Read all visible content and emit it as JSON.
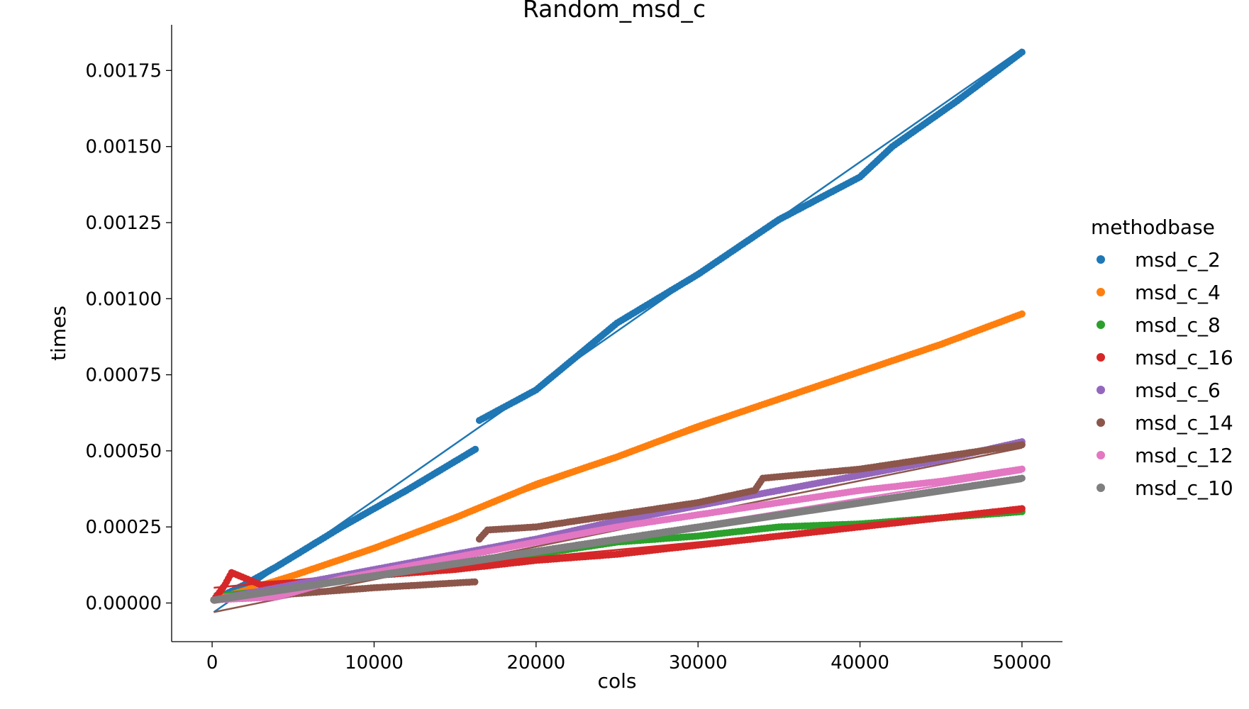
{
  "chart_data": {
    "type": "scatter",
    "title": "Random_msd_c",
    "xlabel": "cols",
    "ylabel": "times",
    "xlim": [
      -2500,
      52500
    ],
    "ylim": [
      -0.000127,
      0.0019
    ],
    "xticks": [
      0,
      10000,
      20000,
      30000,
      40000,
      50000
    ],
    "xtick_labels": [
      "0",
      "10000",
      "20000",
      "30000",
      "40000",
      "50000"
    ],
    "yticks": [
      0.0,
      0.00025,
      0.0005,
      0.00075,
      0.001,
      0.00125,
      0.0015,
      0.00175
    ],
    "ytick_labels": [
      "0.00000",
      "0.00025",
      "0.00050",
      "0.00075",
      "0.00100",
      "0.00125",
      "0.00150",
      "0.00175"
    ],
    "grid": false,
    "legend": {
      "title": "methodbase",
      "placement": "right"
    },
    "series": [
      {
        "name": "msd_c_2",
        "color": "#1f77b4",
        "points": [
          [
            100,
            1e-05
          ],
          [
            2000,
            6e-05
          ],
          [
            4000,
            0.00012
          ],
          [
            8000,
            0.00025
          ],
          [
            12000,
            0.00037
          ],
          [
            16400,
            0.00051
          ],
          [
            16500,
            0.0006
          ],
          [
            20000,
            0.0007
          ],
          [
            25000,
            0.00092
          ],
          [
            30000,
            0.00108
          ],
          [
            35000,
            0.00126
          ],
          [
            40000,
            0.0014
          ],
          [
            42000,
            0.0015
          ],
          [
            46000,
            0.00165
          ],
          [
            50000,
            0.00181
          ]
        ],
        "fit": [
          [
            100,
            -3e-05
          ],
          [
            50000,
            0.00182
          ]
        ]
      },
      {
        "name": "msd_c_4",
        "color": "#ff7f0e",
        "points": [
          [
            100,
            1e-05
          ],
          [
            5000,
            9e-05
          ],
          [
            10000,
            0.00018
          ],
          [
            15000,
            0.00028
          ],
          [
            20000,
            0.00039
          ],
          [
            25000,
            0.00048
          ],
          [
            30000,
            0.00058
          ],
          [
            35000,
            0.00067
          ],
          [
            40000,
            0.00076
          ],
          [
            45000,
            0.00085
          ],
          [
            50000,
            0.00095
          ]
        ],
        "fit": [
          [
            100,
            0.0
          ],
          [
            50000,
            0.00095
          ]
        ]
      },
      {
        "name": "msd_c_8",
        "color": "#2ca02c",
        "points": [
          [
            100,
            1e-05
          ],
          [
            5000,
            5e-05
          ],
          [
            10000,
            9e-05
          ],
          [
            15000,
            0.00013
          ],
          [
            20000,
            0.00016
          ],
          [
            25000,
            0.0002
          ],
          [
            30000,
            0.00022
          ],
          [
            35000,
            0.00025
          ],
          [
            40000,
            0.00026
          ],
          [
            45000,
            0.00028
          ],
          [
            50000,
            0.0003
          ]
        ],
        "fit": [
          [
            100,
            3e-05
          ],
          [
            50000,
            0.0003
          ]
        ]
      },
      {
        "name": "msd_c_16",
        "color": "#d62728",
        "points": [
          [
            100,
            1e-05
          ],
          [
            800,
            6e-05
          ],
          [
            1200,
            0.0001
          ],
          [
            3000,
            6e-05
          ],
          [
            6000,
            7e-05
          ],
          [
            10000,
            9e-05
          ],
          [
            15000,
            0.00011
          ],
          [
            20000,
            0.00014
          ],
          [
            25000,
            0.00016
          ],
          [
            30000,
            0.00019
          ],
          [
            35000,
            0.00022
          ],
          [
            40000,
            0.00025
          ],
          [
            45000,
            0.00028
          ],
          [
            50000,
            0.00031
          ]
        ],
        "fit": [
          [
            100,
            5e-05
          ],
          [
            50000,
            0.0003
          ]
        ]
      },
      {
        "name": "msd_c_6",
        "color": "#9467bd",
        "points": [
          [
            100,
            1e-05
          ],
          [
            5000,
            6e-05
          ],
          [
            10000,
            0.00011
          ],
          [
            15000,
            0.00016
          ],
          [
            20000,
            0.00021
          ],
          [
            25000,
            0.00027
          ],
          [
            30000,
            0.00032
          ],
          [
            35000,
            0.00037
          ],
          [
            40000,
            0.00042
          ],
          [
            45000,
            0.00047
          ],
          [
            50000,
            0.00053
          ]
        ],
        "fit": [
          [
            100,
            0.0
          ],
          [
            50000,
            0.00052
          ]
        ]
      },
      {
        "name": "msd_c_14",
        "color": "#8c564b",
        "points": [
          [
            100,
            1e-05
          ],
          [
            5000,
            3e-05
          ],
          [
            10000,
            5e-05
          ],
          [
            16400,
            7e-05
          ],
          [
            16500,
            0.00021
          ],
          [
            17000,
            0.00024
          ],
          [
            20000,
            0.00025
          ],
          [
            25000,
            0.00029
          ],
          [
            30000,
            0.00033
          ],
          [
            33500,
            0.00037
          ],
          [
            34000,
            0.00041
          ],
          [
            40000,
            0.00044
          ],
          [
            45000,
            0.00048
          ],
          [
            50000,
            0.00052
          ]
        ],
        "fit": [
          [
            100,
            -3e-05
          ],
          [
            50000,
            0.00051
          ]
        ]
      },
      {
        "name": "msd_c_12",
        "color": "#e377c2",
        "points": [
          [
            100,
            1e-05
          ],
          [
            4000,
            2e-05
          ],
          [
            8000,
            8e-05
          ],
          [
            12000,
            0.00012
          ],
          [
            16000,
            0.00016
          ],
          [
            20000,
            0.0002
          ],
          [
            25000,
            0.00025
          ],
          [
            30000,
            0.00029
          ],
          [
            35000,
            0.00033
          ],
          [
            40000,
            0.00037
          ],
          [
            45000,
            0.0004
          ],
          [
            50000,
            0.00044
          ]
        ],
        "fit": [
          [
            100,
            0.0
          ],
          [
            50000,
            0.00043
          ]
        ]
      },
      {
        "name": "msd_c_10",
        "color": "#7f7f7f",
        "points": [
          [
            100,
            1e-05
          ],
          [
            5000,
            5e-05
          ],
          [
            10000,
            9e-05
          ],
          [
            15000,
            0.00013
          ],
          [
            20000,
            0.00017
          ],
          [
            25000,
            0.00021
          ],
          [
            30000,
            0.00025
          ],
          [
            35000,
            0.00029
          ],
          [
            40000,
            0.00033
          ],
          [
            45000,
            0.00037
          ],
          [
            50000,
            0.00041
          ]
        ],
        "fit": [
          [
            100,
            0.0
          ],
          [
            50000,
            0.0004
          ]
        ]
      }
    ]
  }
}
